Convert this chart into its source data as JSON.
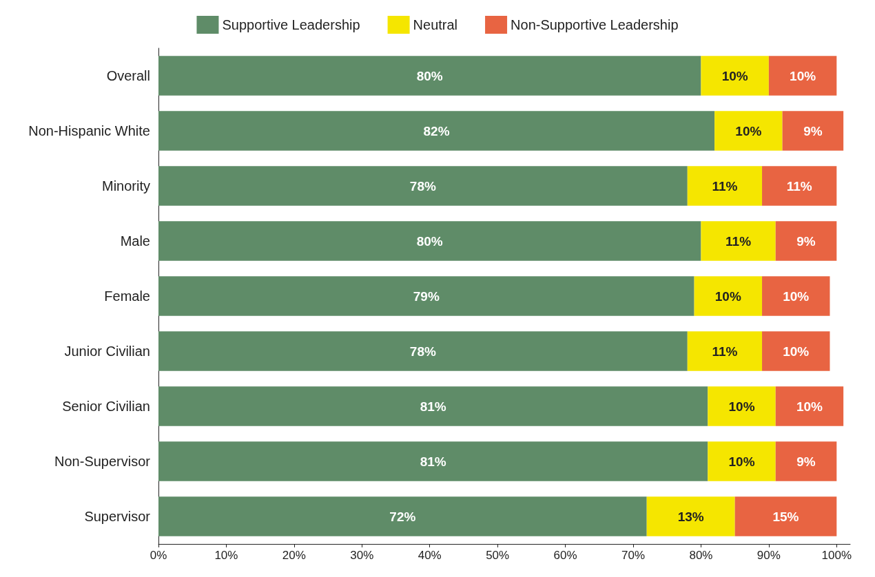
{
  "chart_data": {
    "type": "bar",
    "orientation": "horizontal",
    "stacked": true,
    "categories": [
      "Overall",
      "Non-Hispanic White",
      "Minority",
      "Male",
      "Female",
      "Junior Civilian",
      "Senior Civilian",
      "Non-Supervisor",
      "Supervisor"
    ],
    "series": [
      {
        "name": "Supportive Leadership",
        "color": "#5f8c68",
        "values": [
          80,
          82,
          78,
          80,
          79,
          78,
          81,
          81,
          72
        ],
        "value_labels": [
          "80%",
          "82%",
          "78%",
          "80%",
          "79%",
          "78%",
          "81%",
          "81%",
          "72%"
        ]
      },
      {
        "name": "Neutral",
        "color": "#f5e600",
        "values": [
          10,
          10,
          11,
          11,
          10,
          11,
          10,
          10,
          13
        ],
        "value_labels": [
          "10%",
          "10%",
          "11%",
          "11%",
          "10%",
          "11%",
          "10%",
          "10%",
          "13%"
        ]
      },
      {
        "name": "Non-Supportive Leadership",
        "color": "#e86442",
        "values": [
          10,
          9,
          11,
          9,
          10,
          10,
          10,
          9,
          15
        ],
        "value_labels": [
          "10%",
          "9%",
          "11%",
          "9%",
          "10%",
          "10%",
          "10%",
          "9%",
          "15%"
        ]
      }
    ],
    "xlim": [
      0,
      102
    ],
    "xticks": [
      {
        "value": 0,
        "label": "0%"
      },
      {
        "value": 10,
        "label": "10%"
      },
      {
        "value": 20,
        "label": "20%"
      },
      {
        "value": 30,
        "label": "30%"
      },
      {
        "value": 40,
        "label": "40%"
      },
      {
        "value": 50,
        "label": "50%"
      },
      {
        "value": 60,
        "label": "60%"
      },
      {
        "value": 70,
        "label": "70%"
      },
      {
        "value": 80,
        "label": "80%"
      },
      {
        "value": 90,
        "label": "90%"
      },
      {
        "value": 100,
        "label": "100%"
      }
    ],
    "grid": false,
    "legend": "top"
  }
}
